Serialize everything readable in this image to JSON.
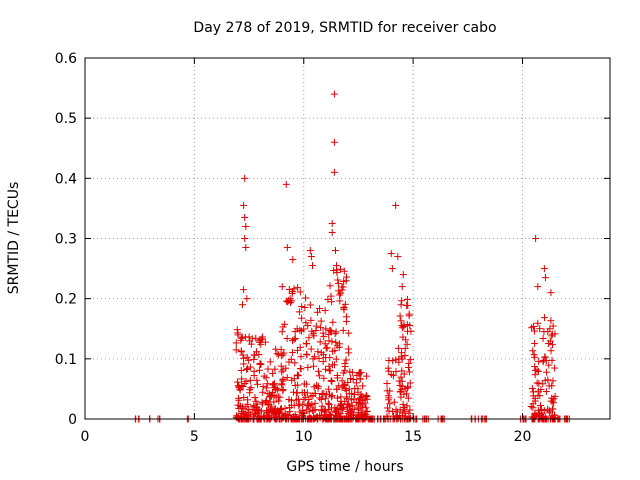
{
  "chart_data": {
    "type": "scatter",
    "title": "Day 278 of 2019, SRMTID for receiver cabo",
    "xlabel": "GPS time / hours",
    "ylabel": "SRMTID / TECUs",
    "xlim": [
      0,
      24
    ],
    "ylim": [
      0,
      0.6
    ],
    "xticks": [
      0,
      5,
      10,
      15,
      20
    ],
    "yticks": [
      0,
      0.1,
      0.2,
      0.3,
      0.4,
      0.5,
      0.6
    ],
    "grid": true,
    "marker": "plus",
    "color": "#e00000",
    "series": [
      {
        "clusters": [
          {
            "x_range": [
              2.3,
              2.6
            ],
            "ymax": 0.0,
            "n": 4
          },
          {
            "x_range": [
              2.9,
              3.5
            ],
            "ymax": 0.0,
            "n": 6
          },
          {
            "x_range": [
              4.6,
              4.8
            ],
            "ymax": 0.0,
            "n": 2
          },
          {
            "x_range": [
              6.9,
              8.3
            ],
            "ymax": 0.15,
            "n": 160
          },
          {
            "x_range": [
              8.3,
              9.0
            ],
            "ymax": 0.12,
            "n": 80
          },
          {
            "x_range": [
              9.0,
              10.3
            ],
            "ymax": 0.22,
            "n": 150
          },
          {
            "x_range": [
              10.3,
              11.2
            ],
            "ymax": 0.2,
            "n": 110
          },
          {
            "x_range": [
              11.2,
              12.1
            ],
            "ymax": 0.25,
            "n": 140
          },
          {
            "x_range": [
              12.1,
              12.9
            ],
            "ymax": 0.08,
            "n": 100
          },
          {
            "x_range": [
              12.9,
              13.8
            ],
            "ymax": 0.0,
            "n": 20
          },
          {
            "x_range": [
              13.8,
              14.4
            ],
            "ymax": 0.12,
            "n": 40
          },
          {
            "x_range": [
              14.4,
              14.9
            ],
            "ymax": 0.2,
            "n": 70
          },
          {
            "x_range": [
              14.9,
              15.7
            ],
            "ymax": 0.0,
            "n": 10
          },
          {
            "x_range": [
              16.1,
              16.6
            ],
            "ymax": 0.0,
            "n": 6
          },
          {
            "x_range": [
              17.6,
              18.4
            ],
            "ymax": 0.0,
            "n": 10
          },
          {
            "x_range": [
              19.8,
              20.3
            ],
            "ymax": 0.0,
            "n": 6
          },
          {
            "x_range": [
              20.4,
              21.0
            ],
            "ymax": 0.16,
            "n": 70
          },
          {
            "x_range": [
              21.0,
              21.5
            ],
            "ymax": 0.18,
            "n": 60
          },
          {
            "x_range": [
              21.5,
              22.2
            ],
            "ymax": 0.0,
            "n": 10
          }
        ],
        "points": [
          [
            7.3,
            0.4
          ],
          [
            7.25,
            0.355
          ],
          [
            7.3,
            0.335
          ],
          [
            7.35,
            0.32
          ],
          [
            7.3,
            0.3
          ],
          [
            7.35,
            0.285
          ],
          [
            7.25,
            0.215
          ],
          [
            7.4,
            0.2
          ],
          [
            7.2,
            0.19
          ],
          [
            9.2,
            0.39
          ],
          [
            9.25,
            0.285
          ],
          [
            9.5,
            0.265
          ],
          [
            10.3,
            0.28
          ],
          [
            10.35,
            0.27
          ],
          [
            10.4,
            0.255
          ],
          [
            11.4,
            0.54
          ],
          [
            11.4,
            0.46
          ],
          [
            11.4,
            0.41
          ],
          [
            11.3,
            0.325
          ],
          [
            11.3,
            0.31
          ],
          [
            11.45,
            0.28
          ],
          [
            11.5,
            0.255
          ],
          [
            14.2,
            0.355
          ],
          [
            14.0,
            0.275
          ],
          [
            14.05,
            0.25
          ],
          [
            14.3,
            0.27
          ],
          [
            14.55,
            0.24
          ],
          [
            14.5,
            0.22
          ],
          [
            20.6,
            0.3
          ],
          [
            21.0,
            0.25
          ],
          [
            21.05,
            0.235
          ],
          [
            21.3,
            0.21
          ],
          [
            20.7,
            0.22
          ]
        ]
      }
    ]
  }
}
